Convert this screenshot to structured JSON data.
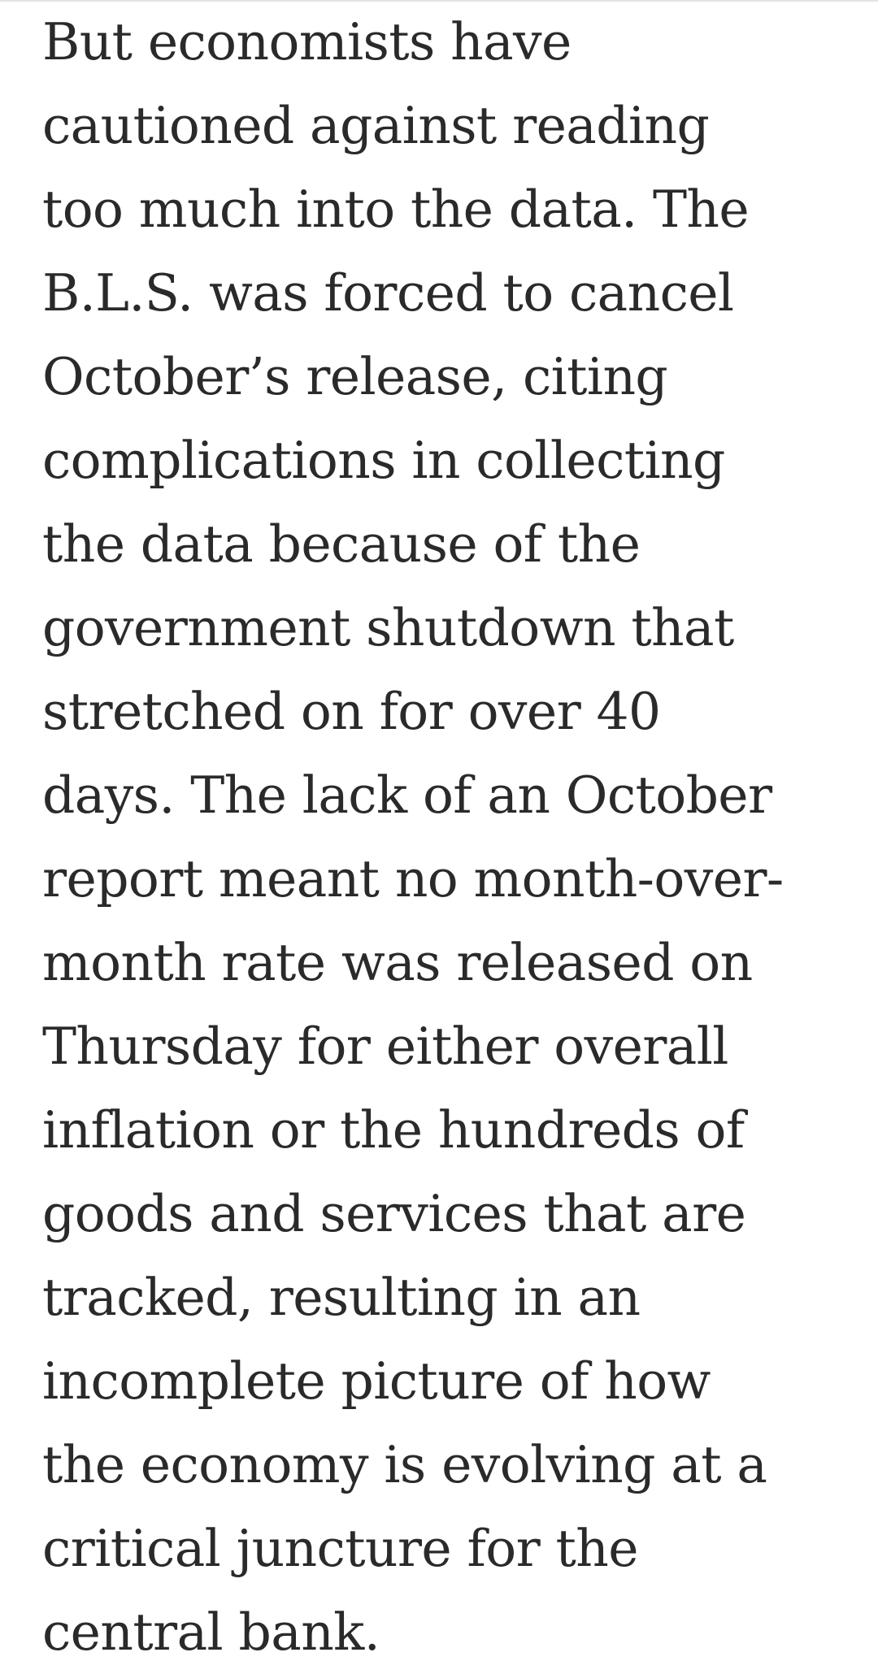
{
  "article": {
    "lines": [
      "But economists have",
      "cautioned against reading",
      "too much into the data. The",
      "B.L.S. was forced to cancel",
      "October’s release, citing",
      "complications in collecting",
      "the data because of the",
      "government shutdown that",
      "stretched on for over 40",
      "days. The lack of an October",
      "report meant no month-over-",
      "month rate was released on",
      "Thursday for either overall",
      "inflation or the hundreds of",
      "goods and services that are",
      "tracked, resulting in an",
      "incomplete picture of how",
      "the economy is evolving at a",
      "critical juncture for the",
      "central bank."
    ]
  }
}
